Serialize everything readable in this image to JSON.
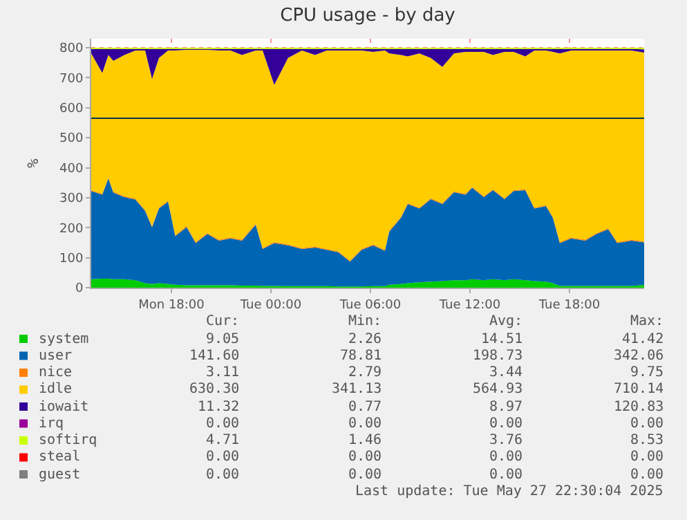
{
  "chart_data": {
    "type": "area",
    "stacked": true,
    "title": "CPU usage - by day",
    "ylabel": "%",
    "x": [
      "2025-05-26T13:10",
      "2025-05-26T13:50",
      "2025-05-26T14:12",
      "2025-05-26T14:30",
      "2025-05-26T15:10",
      "2025-05-26T15:50",
      "2025-05-26T16:25",
      "2025-05-26T16:50",
      "2025-05-26T17:15",
      "2025-05-26T17:48",
      "2025-05-26T18:14",
      "2025-05-26T18:55",
      "2025-05-26T19:28",
      "2025-05-26T20:10",
      "2025-05-26T20:52",
      "2025-05-26T21:34",
      "2025-05-26T22:15",
      "2025-05-26T23:05",
      "2025-05-26T23:30",
      "2025-05-27T00:12",
      "2025-05-27T01:02",
      "2025-05-27T01:52",
      "2025-05-27T02:40",
      "2025-05-27T03:22",
      "2025-05-27T04:04",
      "2025-05-27T04:46",
      "2025-05-27T05:28",
      "2025-05-27T06:10",
      "2025-05-27T06:52",
      "2025-05-27T07:08",
      "2025-05-27T07:50",
      "2025-05-27T08:15",
      "2025-05-27T08:57",
      "2025-05-27T09:38",
      "2025-05-27T10:20",
      "2025-05-27T11:02",
      "2025-05-27T11:44",
      "2025-05-27T12:08",
      "2025-05-27T12:50",
      "2025-05-27T13:23",
      "2025-05-27T14:05",
      "2025-05-27T14:38",
      "2025-05-27T15:20",
      "2025-05-27T15:53",
      "2025-05-27T16:35",
      "2025-05-27T17:00",
      "2025-05-27T17:25",
      "2025-05-27T18:06",
      "2025-05-27T18:57",
      "2025-05-27T19:38",
      "2025-05-27T20:20",
      "2025-05-27T20:53",
      "2025-05-27T21:44",
      "2025-05-27T22:30"
    ],
    "series": [
      {
        "name": "system",
        "color": "#00cc00",
        "values": [
          28,
          30,
          30,
          28,
          28,
          25,
          15,
          12,
          15,
          12,
          10,
          8,
          8,
          8,
          8,
          8,
          7,
          7,
          6,
          6,
          5,
          5,
          5,
          5,
          4,
          4,
          4,
          5,
          5,
          10,
          12,
          15,
          18,
          20,
          22,
          25,
          25,
          28,
          25,
          28,
          25,
          28,
          25,
          22,
          20,
          15,
          6,
          6,
          6,
          6,
          6,
          6,
          6,
          9
        ]
      },
      {
        "name": "user",
        "color": "#0066b3",
        "values": [
          294,
          280,
          334,
          289,
          274,
          269,
          241,
          190,
          249,
          275,
          162,
          194,
          141,
          171,
          149,
          156,
          150,
          203,
          123,
          143,
          136,
          124,
          129,
          121,
          114,
          83,
          122,
          136,
          118,
          177,
          221,
          264,
          246,
          275,
          257,
          293,
          285,
          305,
          277,
          297,
          270,
          294,
          300,
          242,
          252,
          218,
          143,
          158,
          151,
          173,
          189,
          143,
          151,
          142
        ]
      },
      {
        "name": "nice",
        "color": "#ff8000",
        "values": [
          3,
          3,
          3,
          3,
          3,
          3,
          3,
          3,
          3,
          3,
          3,
          3,
          3,
          3,
          3,
          3,
          3,
          3,
          3,
          3,
          3,
          3,
          3,
          3,
          3,
          3,
          3,
          3,
          3,
          3,
          3,
          3,
          3,
          3,
          3,
          3,
          3,
          3,
          3,
          3,
          3,
          3,
          3,
          3,
          3,
          3,
          3,
          3,
          3,
          3,
          3,
          3,
          3,
          3
        ]
      },
      {
        "name": "idle",
        "color": "#ffcc00",
        "values": [
          456,
          403,
          409,
          436,
          471,
          494,
          532,
          491,
          499,
          501,
          616,
          588,
          641,
          611,
          631,
          624,
          616,
          578,
          659,
          524,
          622,
          659,
          639,
          662,
          670,
          701,
          662,
          642,
          665,
          591,
          540,
          489,
          514,
          468,
          454,
          460,
          473,
          450,
          481,
          448,
          488,
          461,
          443,
          524,
          516,
          550,
          629,
          624,
          631,
          609,
          593,
          639,
          631,
          630
        ]
      },
      {
        "name": "iowait",
        "color": "#330099",
        "values": [
          15,
          80,
          20,
          40,
          20,
          5,
          5,
          100,
          30,
          5,
          5,
          3,
          3,
          3,
          5,
          5,
          20,
          5,
          5,
          120,
          30,
          5,
          20,
          5,
          5,
          5,
          5,
          10,
          5,
          15,
          20,
          25,
          15,
          30,
          60,
          15,
          10,
          10,
          10,
          20,
          10,
          10,
          25,
          5,
          5,
          10,
          15,
          5,
          5,
          5,
          5,
          5,
          5,
          11
        ]
      },
      {
        "name": "irq",
        "color": "#990099",
        "values": [
          null,
          null,
          null,
          null,
          null,
          null,
          null,
          null,
          null,
          null,
          null,
          null,
          null,
          null,
          null,
          null,
          null,
          null,
          null,
          null,
          null,
          null,
          null,
          null,
          null,
          null,
          null,
          null,
          null,
          null,
          null,
          null,
          null,
          null,
          null,
          null,
          null,
          null,
          null,
          null,
          null,
          null,
          null,
          null,
          null,
          null,
          null,
          null,
          null,
          null,
          null,
          null,
          null,
          null
        ]
      },
      {
        "name": "softirq",
        "color": "#ccff00",
        "values": [
          4,
          4,
          4,
          4,
          4,
          4,
          4,
          4,
          4,
          4,
          4,
          4,
          4,
          4,
          4,
          4,
          4,
          4,
          4,
          4,
          4,
          4,
          4,
          4,
          4,
          4,
          4,
          4,
          4,
          4,
          4,
          4,
          4,
          4,
          4,
          4,
          4,
          4,
          4,
          4,
          4,
          4,
          4,
          4,
          4,
          4,
          4,
          4,
          4,
          4,
          4,
          4,
          4,
          5
        ]
      },
      {
        "name": "steal",
        "color": "#ff0000",
        "values": [
          null,
          null,
          null,
          null,
          null,
          null,
          null,
          null,
          null,
          null,
          null,
          null,
          null,
          null,
          null,
          null,
          null,
          null,
          null,
          null,
          null,
          null,
          null,
          null,
          null,
          null,
          null,
          null,
          null,
          null,
          null,
          null,
          null,
          null,
          null,
          null,
          null,
          null,
          null,
          null,
          null,
          null,
          null,
          null,
          null,
          null,
          null,
          null,
          null,
          null,
          null,
          null,
          null,
          null
        ]
      },
      {
        "name": "guest",
        "color": "#808080",
        "values": [
          null,
          null,
          null,
          null,
          null,
          null,
          null,
          null,
          null,
          null,
          null,
          null,
          null,
          null,
          null,
          null,
          null,
          null,
          null,
          null,
          null,
          null,
          null,
          null,
          null,
          null,
          null,
          null,
          null,
          null,
          null,
          null,
          null,
          null,
          null,
          null,
          null,
          null,
          null,
          null,
          null,
          null,
          null,
          null,
          null,
          null,
          null,
          null,
          null,
          null,
          null,
          null,
          null,
          null
        ]
      }
    ],
    "xlim": [
      "2025-05-26T13:10",
      "2025-05-27T22:30"
    ],
    "xticks": [
      {
        "value": "2025-05-26T18:00",
        "label": "Mon 18:00"
      },
      {
        "value": "2025-05-27T00:00",
        "label": "Tue 00:00"
      },
      {
        "value": "2025-05-27T06:00",
        "label": "Tue 06:00"
      },
      {
        "value": "2025-05-27T12:00",
        "label": "Tue 12:00"
      },
      {
        "value": "2025-05-27T18:00",
        "label": "Tue 18:00"
      }
    ],
    "ylim": [
      0,
      830
    ],
    "yticks": [
      0,
      100,
      200,
      300,
      400,
      500,
      600,
      700,
      800
    ],
    "ref_lines": [
      {
        "axis": "y",
        "value": 565,
        "color": "#10304a"
      }
    ],
    "grid": true,
    "legend": "bottom",
    "annotations": [
      "Cur:",
      "Min:",
      "Avg:",
      "Max:",
      "9.05",
      "2.26",
      "14.51",
      "41.42",
      "141.60",
      "78.81",
      "198.73",
      "342.06",
      "3.11",
      "2.79",
      "3.44",
      "9.75",
      "630.30",
      "341.13",
      "564.93",
      "710.14",
      "11.32",
      "0.77",
      "8.97",
      "120.83",
      "0.00",
      "0.00",
      "0.00",
      "0.00",
      "4.71",
      "1.46",
      "3.76",
      "8.53",
      "0.00",
      "0.00",
      "0.00",
      "0.00",
      "0.00",
      "0.00",
      "0.00",
      "0.00",
      "Last update: Tue May 27 22:30:04 2025"
    ]
  }
}
